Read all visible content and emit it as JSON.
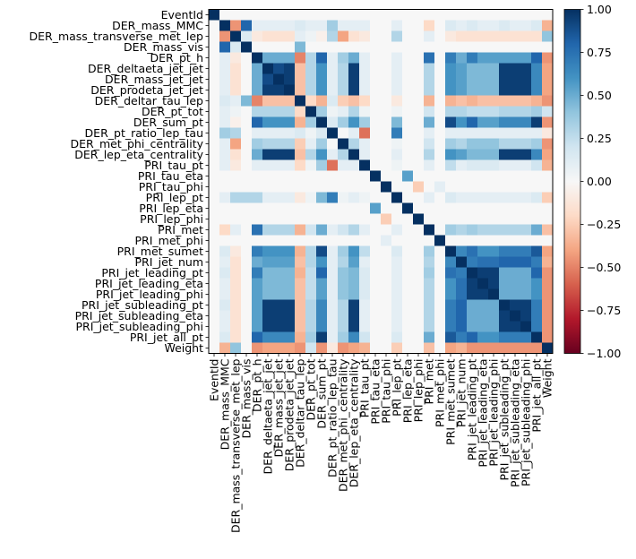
{
  "chart_data": {
    "type": "heatmap",
    "title": "",
    "xlabel": "",
    "ylabel": "",
    "labels": [
      "EventId",
      "DER_mass_MMC",
      "DER_mass_transverse_met_lep",
      "DER_mass_vis",
      "DER_pt_h",
      "DER_deltaeta_jet_jet",
      "DER_mass_jet_jet",
      "DER_prodeta_jet_jet",
      "DER_deltar_tau_lep",
      "DER_pt_tot",
      "DER_sum_pt",
      "DER_pt_ratio_lep_tau",
      "DER_met_phi_centrality",
      "DER_lep_eta_centrality",
      "PRI_tau_pt",
      "PRI_tau_eta",
      "PRI_tau_phi",
      "PRI_lep_pt",
      "PRI_lep_eta",
      "PRI_lep_phi",
      "PRI_met",
      "PRI_met_phi",
      "PRI_met_sumet",
      "PRI_jet_num",
      "PRI_jet_leading_pt",
      "PRI_jet_leading_eta",
      "PRI_jet_leading_phi",
      "PRI_jet_subleading_pt",
      "PRI_jet_subleading_eta",
      "PRI_jet_subleading_phi",
      "PRI_jet_all_pt",
      "Weight"
    ],
    "matrix": [
      [
        1.0,
        0.0,
        0.0,
        0.0,
        0.0,
        0.0,
        0.0,
        0.0,
        0.0,
        0.0,
        0.0,
        0.0,
        0.0,
        0.0,
        0.0,
        0.0,
        0.0,
        0.0,
        0.0,
        0.0,
        0.0,
        0.0,
        0.0,
        0.0,
        0.0,
        0.0,
        0.0,
        0.0,
        0.0,
        0.0,
        0.0,
        0.0
      ],
      [
        0.0,
        1.0,
        -0.45,
        0.8,
        0.1,
        0.1,
        0.1,
        0.1,
        0.15,
        0.1,
        0.1,
        0.35,
        0.1,
        0.1,
        0.1,
        0.0,
        0.0,
        0.1,
        0.0,
        0.0,
        -0.2,
        0.0,
        0.15,
        0.1,
        0.15,
        0.1,
        0.1,
        0.15,
        0.1,
        0.1,
        0.15,
        -0.35
      ],
      [
        0.0,
        -0.45,
        1.0,
        0.15,
        -0.1,
        -0.15,
        -0.15,
        -0.15,
        0.1,
        0.05,
        -0.05,
        0.3,
        -0.4,
        -0.15,
        -0.1,
        0.0,
        0.0,
        0.3,
        0.0,
        0.0,
        0.1,
        0.0,
        -0.1,
        -0.15,
        -0.15,
        -0.15,
        -0.15,
        -0.15,
        -0.15,
        -0.15,
        -0.15,
        0.4
      ],
      [
        0.0,
        0.8,
        0.15,
        1.0,
        0.0,
        0.0,
        0.0,
        0.0,
        0.45,
        0.0,
        0.0,
        0.0,
        0.0,
        0.0,
        0.0,
        0.0,
        0.0,
        0.0,
        0.0,
        0.0,
        0.0,
        0.0,
        0.0,
        0.0,
        0.0,
        0.0,
        0.0,
        0.0,
        0.0,
        0.0,
        0.0,
        0.0
      ],
      [
        0.0,
        0.1,
        -0.1,
        0.0,
        1.0,
        0.5,
        0.5,
        0.5,
        -0.5,
        0.3,
        0.8,
        0.1,
        0.35,
        0.5,
        0.1,
        0.0,
        0.0,
        0.1,
        0.0,
        0.0,
        0.75,
        0.0,
        0.7,
        0.5,
        0.7,
        0.55,
        0.55,
        0.55,
        0.55,
        0.55,
        0.8,
        -0.45
      ],
      [
        0.0,
        0.1,
        -0.15,
        0.0,
        0.5,
        1.0,
        0.9,
        0.95,
        -0.3,
        0.3,
        0.6,
        0.1,
        0.3,
        0.95,
        0.1,
        0.0,
        0.0,
        0.1,
        0.0,
        0.0,
        0.3,
        0.0,
        0.6,
        0.55,
        0.45,
        0.45,
        0.45,
        0.95,
        0.95,
        0.95,
        0.65,
        -0.4
      ],
      [
        0.0,
        0.1,
        -0.15,
        0.0,
        0.5,
        0.9,
        1.0,
        0.95,
        -0.3,
        0.3,
        0.6,
        0.1,
        0.3,
        0.95,
        0.1,
        0.0,
        0.0,
        0.1,
        0.0,
        0.0,
        0.3,
        0.0,
        0.6,
        0.55,
        0.45,
        0.45,
        0.45,
        0.95,
        0.95,
        0.95,
        0.65,
        -0.4
      ],
      [
        0.0,
        0.1,
        -0.15,
        0.0,
        0.5,
        0.95,
        0.95,
        1.0,
        -0.3,
        0.3,
        0.6,
        0.1,
        0.3,
        0.95,
        0.1,
        0.0,
        0.0,
        0.1,
        0.0,
        0.0,
        0.3,
        0.0,
        0.6,
        0.55,
        0.45,
        0.45,
        0.45,
        0.95,
        0.95,
        0.95,
        0.65,
        -0.4
      ],
      [
        0.0,
        0.15,
        0.1,
        0.45,
        -0.5,
        -0.3,
        -0.3,
        -0.3,
        1.0,
        -0.2,
        -0.35,
        0.15,
        -0.25,
        -0.3,
        -0.2,
        0.0,
        0.0,
        -0.1,
        0.0,
        0.0,
        -0.35,
        0.0,
        -0.35,
        -0.3,
        -0.35,
        -0.3,
        -0.3,
        -0.3,
        -0.3,
        -0.3,
        -0.35,
        -0.45
      ],
      [
        0.0,
        0.1,
        0.05,
        0.0,
        0.3,
        0.3,
        0.3,
        0.3,
        -0.2,
        1.0,
        0.35,
        0.05,
        0.1,
        0.3,
        0.05,
        0.0,
        0.0,
        0.05,
        0.0,
        0.0,
        0.2,
        0.0,
        0.3,
        0.3,
        0.25,
        0.25,
        0.25,
        0.3,
        0.3,
        0.3,
        0.35,
        0.2
      ],
      [
        0.0,
        0.1,
        -0.05,
        0.0,
        0.8,
        0.6,
        0.6,
        0.6,
        -0.35,
        0.35,
        1.0,
        0.15,
        0.35,
        0.6,
        0.35,
        0.0,
        0.0,
        0.45,
        0.0,
        0.0,
        0.5,
        0.0,
        0.9,
        0.6,
        0.8,
        0.55,
        0.55,
        0.65,
        0.65,
        0.65,
        0.95,
        -0.45
      ],
      [
        0.0,
        0.35,
        0.3,
        0.0,
        0.1,
        0.1,
        0.1,
        0.1,
        0.15,
        0.05,
        0.15,
        1.0,
        0.0,
        0.1,
        -0.55,
        0.0,
        0.0,
        0.7,
        0.0,
        0.0,
        0.1,
        0.0,
        0.1,
        0.1,
        0.1,
        0.1,
        0.1,
        0.1,
        0.1,
        0.1,
        0.1,
        -0.1
      ],
      [
        0.0,
        0.1,
        -0.4,
        0.0,
        0.35,
        0.3,
        0.3,
        0.3,
        -0.25,
        0.1,
        0.35,
        0.0,
        1.0,
        0.3,
        0.1,
        0.0,
        0.0,
        0.05,
        0.0,
        0.0,
        0.2,
        0.0,
        0.35,
        0.3,
        0.4,
        0.4,
        0.4,
        0.3,
        0.3,
        0.3,
        0.35,
        -0.45
      ],
      [
        0.0,
        0.1,
        -0.15,
        0.0,
        0.5,
        0.95,
        0.95,
        0.95,
        -0.3,
        0.3,
        0.6,
        0.1,
        0.3,
        1.0,
        0.1,
        0.0,
        0.0,
        0.1,
        0.0,
        0.0,
        0.3,
        0.0,
        0.6,
        0.55,
        0.45,
        0.45,
        0.45,
        0.95,
        0.95,
        0.95,
        0.65,
        -0.4
      ],
      [
        0.0,
        0.1,
        -0.1,
        0.0,
        0.1,
        0.1,
        0.1,
        0.1,
        -0.2,
        0.05,
        0.35,
        -0.55,
        0.1,
        0.1,
        1.0,
        0.0,
        0.0,
        0.05,
        0.0,
        0.0,
        0.1,
        0.0,
        0.25,
        0.1,
        0.15,
        0.15,
        0.15,
        0.1,
        0.1,
        0.1,
        0.2,
        -0.35
      ],
      [
        0.0,
        0.0,
        0.0,
        0.0,
        0.0,
        0.0,
        0.0,
        0.0,
        0.0,
        0.0,
        0.0,
        0.0,
        0.0,
        0.0,
        0.0,
        1.0,
        0.0,
        0.0,
        0.55,
        0.0,
        0.0,
        0.0,
        0.0,
        0.0,
        0.0,
        0.0,
        0.0,
        0.0,
        0.0,
        0.0,
        0.0,
        0.0
      ],
      [
        0.0,
        0.0,
        0.0,
        0.0,
        0.0,
        0.0,
        0.0,
        0.0,
        0.0,
        0.0,
        0.0,
        0.0,
        0.0,
        0.0,
        0.0,
        0.0,
        1.0,
        0.0,
        0.0,
        -0.25,
        0.0,
        0.1,
        0.0,
        0.0,
        0.0,
        0.0,
        0.0,
        0.0,
        0.0,
        0.0,
        0.0,
        0.0
      ],
      [
        0.0,
        0.1,
        0.3,
        0.3,
        0.3,
        0.1,
        0.1,
        0.1,
        -0.1,
        0.05,
        0.45,
        0.7,
        0.05,
        0.1,
        0.05,
        0.0,
        0.0,
        1.0,
        0.0,
        0.0,
        0.1,
        0.0,
        0.15,
        0.1,
        0.1,
        0.1,
        0.1,
        0.1,
        0.1,
        0.1,
        0.15,
        -0.25
      ],
      [
        0.0,
        0.0,
        0.0,
        0.0,
        0.0,
        0.0,
        0.0,
        0.0,
        0.0,
        0.0,
        0.0,
        0.0,
        0.0,
        0.0,
        0.0,
        0.55,
        0.0,
        0.0,
        1.0,
        0.0,
        0.0,
        0.0,
        0.0,
        0.0,
        0.0,
        0.0,
        0.0,
        0.0,
        0.0,
        0.0,
        0.0,
        0.0
      ],
      [
        0.0,
        0.0,
        0.0,
        0.0,
        0.0,
        0.0,
        0.0,
        0.0,
        0.0,
        0.0,
        0.0,
        0.0,
        0.0,
        0.0,
        0.0,
        0.0,
        -0.25,
        0.0,
        0.0,
        1.0,
        0.0,
        0.0,
        0.0,
        0.0,
        0.0,
        0.0,
        0.0,
        0.0,
        0.0,
        0.0,
        0.0,
        0.0
      ],
      [
        0.0,
        -0.2,
        0.1,
        0.0,
        0.75,
        0.3,
        0.3,
        0.3,
        -0.35,
        0.2,
        0.5,
        0.1,
        0.2,
        0.3,
        0.1,
        0.0,
        0.0,
        0.1,
        0.0,
        0.0,
        1.0,
        0.0,
        0.35,
        0.3,
        0.35,
        0.3,
        0.3,
        0.3,
        0.3,
        0.3,
        0.5,
        -0.3
      ],
      [
        0.0,
        0.0,
        0.0,
        0.0,
        0.0,
        0.0,
        0.0,
        0.0,
        0.0,
        0.0,
        0.0,
        0.0,
        0.0,
        0.0,
        0.0,
        0.0,
        0.1,
        0.0,
        0.0,
        0.0,
        0.0,
        1.0,
        0.0,
        0.0,
        0.0,
        0.0,
        0.0,
        0.0,
        0.0,
        0.0,
        0.0,
        0.0
      ],
      [
        0.0,
        0.15,
        -0.1,
        0.0,
        0.7,
        0.6,
        0.6,
        0.6,
        -0.35,
        0.3,
        0.9,
        0.1,
        0.35,
        0.6,
        0.25,
        0.0,
        0.0,
        0.15,
        0.0,
        0.0,
        0.35,
        0.0,
        1.0,
        0.65,
        0.75,
        0.6,
        0.6,
        0.7,
        0.7,
        0.7,
        0.85,
        -0.4
      ],
      [
        0.0,
        0.1,
        -0.15,
        0.0,
        0.5,
        0.55,
        0.55,
        0.55,
        -0.3,
        0.3,
        0.6,
        0.1,
        0.3,
        0.55,
        0.1,
        0.0,
        0.0,
        0.1,
        0.0,
        0.0,
        0.3,
        0.0,
        0.65,
        1.0,
        0.7,
        0.75,
        0.75,
        0.8,
        0.8,
        0.8,
        0.7,
        -0.35
      ],
      [
        0.0,
        0.15,
        -0.15,
        0.0,
        0.7,
        0.45,
        0.45,
        0.45,
        -0.35,
        0.25,
        0.8,
        0.1,
        0.4,
        0.45,
        0.15,
        0.0,
        0.0,
        0.1,
        0.0,
        0.0,
        0.35,
        0.0,
        0.75,
        0.7,
        1.0,
        0.95,
        0.95,
        0.5,
        0.5,
        0.5,
        0.8,
        -0.45
      ],
      [
        0.0,
        0.1,
        -0.15,
        0.0,
        0.55,
        0.45,
        0.45,
        0.45,
        -0.3,
        0.25,
        0.55,
        0.1,
        0.4,
        0.45,
        0.15,
        0.0,
        0.0,
        0.1,
        0.0,
        0.0,
        0.3,
        0.0,
        0.6,
        0.75,
        0.95,
        1.0,
        0.95,
        0.5,
        0.5,
        0.5,
        0.6,
        -0.45
      ],
      [
        0.0,
        0.1,
        -0.15,
        0.0,
        0.55,
        0.45,
        0.45,
        0.45,
        -0.3,
        0.25,
        0.55,
        0.1,
        0.4,
        0.45,
        0.15,
        0.0,
        0.0,
        0.1,
        0.0,
        0.0,
        0.3,
        0.0,
        0.6,
        0.75,
        0.95,
        0.95,
        1.0,
        0.5,
        0.5,
        0.5,
        0.6,
        -0.45
      ],
      [
        0.0,
        0.15,
        -0.15,
        0.0,
        0.55,
        0.95,
        0.95,
        0.95,
        -0.3,
        0.3,
        0.65,
        0.1,
        0.3,
        0.95,
        0.1,
        0.0,
        0.0,
        0.1,
        0.0,
        0.0,
        0.3,
        0.0,
        0.7,
        0.8,
        0.5,
        0.5,
        0.5,
        1.0,
        0.95,
        0.95,
        0.7,
        -0.45
      ],
      [
        0.0,
        0.1,
        -0.15,
        0.0,
        0.55,
        0.95,
        0.95,
        0.95,
        -0.3,
        0.3,
        0.65,
        0.1,
        0.3,
        0.95,
        0.1,
        0.0,
        0.0,
        0.1,
        0.0,
        0.0,
        0.3,
        0.0,
        0.7,
        0.8,
        0.5,
        0.5,
        0.5,
        0.95,
        1.0,
        0.95,
        0.7,
        -0.45
      ],
      [
        0.0,
        0.1,
        -0.15,
        0.0,
        0.55,
        0.95,
        0.95,
        0.95,
        -0.3,
        0.3,
        0.65,
        0.1,
        0.3,
        0.95,
        0.1,
        0.0,
        0.0,
        0.1,
        0.0,
        0.0,
        0.3,
        0.0,
        0.7,
        0.8,
        0.5,
        0.5,
        0.5,
        0.95,
        0.95,
        1.0,
        0.7,
        -0.45
      ],
      [
        0.0,
        0.15,
        -0.15,
        0.0,
        0.8,
        0.65,
        0.65,
        0.65,
        -0.35,
        0.35,
        0.95,
        0.1,
        0.35,
        0.65,
        0.2,
        0.0,
        0.0,
        0.15,
        0.0,
        0.0,
        0.5,
        0.0,
        0.85,
        0.7,
        0.8,
        0.6,
        0.6,
        0.7,
        0.7,
        0.7,
        1.0,
        -0.45
      ],
      [
        0.0,
        -0.35,
        0.4,
        0.0,
        -0.45,
        -0.4,
        -0.4,
        -0.4,
        -0.45,
        0.2,
        -0.45,
        -0.1,
        -0.45,
        -0.4,
        -0.35,
        0.0,
        0.0,
        -0.25,
        0.0,
        0.0,
        -0.3,
        0.0,
        -0.4,
        -0.35,
        -0.45,
        -0.45,
        -0.45,
        -0.45,
        -0.45,
        -0.45,
        -0.45,
        1.0
      ]
    ],
    "colormap": "RdBu",
    "colorbar": {
      "vmin": -1.0,
      "vmax": 1.0,
      "ticks": [
        -1.0,
        -0.75,
        -0.5,
        -0.25,
        0.0,
        0.25,
        0.5,
        0.75,
        1.0
      ],
      "tick_labels": [
        "−1.00",
        "−0.75",
        "−0.50",
        "−0.25",
        "0.00",
        "0.25",
        "0.50",
        "0.75",
        "1.00"
      ]
    },
    "colormap_stops": [
      "#67001f",
      "#b2182b",
      "#d6604d",
      "#f4a582",
      "#fddbc7",
      "#f7f7f7",
      "#d1e5f0",
      "#92c5de",
      "#4393c3",
      "#2166ac",
      "#053061"
    ],
    "grid": false
  }
}
